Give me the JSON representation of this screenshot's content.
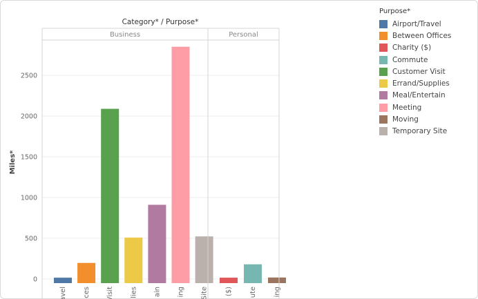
{
  "chart_data": {
    "type": "bar",
    "title": "Category* / Purpose*",
    "ylabel": "Miles*",
    "ylim": [
      0,
      2950
    ],
    "yticks": [
      0,
      500,
      1000,
      1500,
      2000,
      2500
    ],
    "grid": true,
    "legend_title": "Purpose*",
    "legend_position": "right",
    "legend": [
      {
        "name": "Airport/Travel",
        "color": "#4e79a7"
      },
      {
        "name": "Between Offices",
        "color": "#f28e2b"
      },
      {
        "name": "Charity ($)",
        "color": "#e15759"
      },
      {
        "name": "Commute",
        "color": "#76b7b2"
      },
      {
        "name": "Customer Visit",
        "color": "#59a14f"
      },
      {
        "name": "Errand/Supplies",
        "color": "#edc948"
      },
      {
        "name": "Meal/Entertain",
        "color": "#b07aa1"
      },
      {
        "name": "Meeting",
        "color": "#ff9da7"
      },
      {
        "name": "Moving",
        "color": "#9c755f"
      },
      {
        "name": "Temporary Site",
        "color": "#bab0ac"
      }
    ],
    "panels": [
      {
        "name": "Business",
        "bars": [
          {
            "category": "Airport/Travel",
            "tick": "avel",
            "value": 16
          },
          {
            "category": "Between Offices",
            "tick": "ces",
            "value": 197
          },
          {
            "category": "Customer Visit",
            "tick": "Visit",
            "value": 2089
          },
          {
            "category": "Errand/Supplies",
            "tick": "lies",
            "value": 508
          },
          {
            "category": "Meal/Entertain",
            "tick": "ain",
            "value": 911
          },
          {
            "category": "Meeting",
            "tick": "ing",
            "value": 2851
          },
          {
            "category": "Temporary Site",
            "tick": "Site",
            "value": 523
          }
        ]
      },
      {
        "name": "Personal",
        "bars": [
          {
            "category": "Charity ($)",
            "tick": "($)",
            "value": 16
          },
          {
            "category": "Commute",
            "tick": "ute",
            "value": 180
          },
          {
            "category": "Moving",
            "tick": "ing",
            "value": 18
          }
        ]
      }
    ]
  }
}
